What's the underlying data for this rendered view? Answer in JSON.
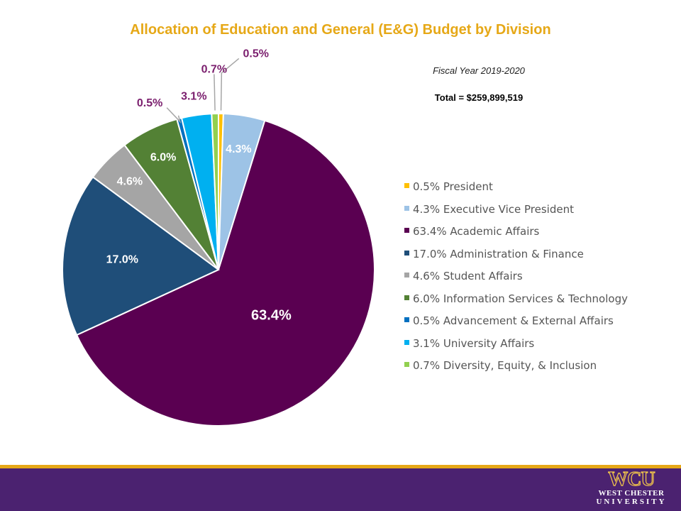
{
  "chart_data": {
    "type": "pie",
    "title": "Allocation of Education and General (E&G) Budget by Division",
    "subtitle": "Fiscal Year 2019-2020",
    "total_label": "Total = $259,899,519",
    "slices": [
      {
        "name": "President",
        "value": 0.5,
        "label": "0.5%",
        "legend": "0.5% President",
        "color": "#ffc000"
      },
      {
        "name": "Executive Vice President",
        "value": 4.3,
        "label": "4.3%",
        "legend": "4.3% Executive Vice President",
        "color": "#9dc3e6"
      },
      {
        "name": "Academic Affairs",
        "value": 63.4,
        "label": "63.4%",
        "legend": "63.4% Academic Affairs",
        "color": "#5a0051"
      },
      {
        "name": "Administration & Finance",
        "value": 17.0,
        "label": "17.0%",
        "legend": "17.0% Administration & Finance",
        "color": "#1f4e79"
      },
      {
        "name": "Student Affairs",
        "value": 4.6,
        "label": "4.6%",
        "legend": "4.6% Student Affairs",
        "color": "#a5a5a5"
      },
      {
        "name": "Information Services & Technology",
        "value": 6.0,
        "label": "6.0%",
        "legend": "6.0% Information Services & Technology",
        "color": "#538135"
      },
      {
        "name": "Advancement & External Affairs",
        "value": 0.5,
        "label": "0.5%",
        "legend": "0.5% Advancement & External Affairs",
        "color": "#0070c0"
      },
      {
        "name": "University Affairs",
        "value": 3.1,
        "label": "3.1%",
        "legend": "3.1% University Affairs",
        "color": "#00b0f0"
      },
      {
        "name": "Diversity, Equity, & Inclusion",
        "value": 0.7,
        "label": "0.7%",
        "legend": "0.7% Diversity, Equity, & Inclusion",
        "color": "#92d050"
      }
    ],
    "legend_position": "right"
  },
  "logo": {
    "mark": "WCU",
    "line1": "WEST CHESTER",
    "line2": "UNIVERSITY"
  },
  "colors": {
    "accent_gold": "#e6a817",
    "footer_purple": "#4b2270"
  }
}
